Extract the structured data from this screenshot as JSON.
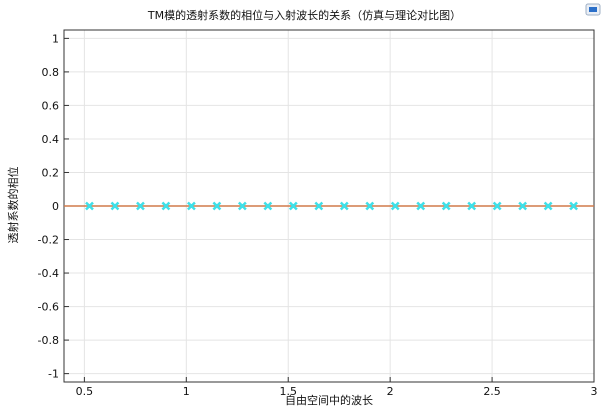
{
  "chart_data": {
    "type": "line",
    "title": "TM模的透射系数的相位与入射波长的关系（仿真与理论对比图）",
    "xlabel": "自由空间中的波长",
    "ylabel": "透射系数的相位",
    "xlim": [
      0.4,
      3.0
    ],
    "ylim": [
      -1.05,
      1.05
    ],
    "xticks": [
      0.5,
      1,
      1.5,
      2,
      2.5,
      3
    ],
    "yticks": [
      1,
      0.8,
      0.6,
      0.4,
      0.2,
      0,
      -0.2,
      -0.4,
      -0.6,
      -0.8,
      -1
    ],
    "xtick_labels": [
      "0.5",
      "1",
      "1.5",
      "2",
      "2.5",
      "3"
    ],
    "ytick_labels": [
      "1",
      "0.8",
      "0.6",
      "0.4",
      "0.2",
      "0",
      "-0.2",
      "-0.4",
      "-0.6",
      "-0.8",
      "-1"
    ],
    "grid": true,
    "series": [
      {
        "style": "line",
        "color": "#d07a4a",
        "x": [
          0.4,
          3.0
        ],
        "y": [
          0,
          0
        ]
      },
      {
        "style": "marker",
        "color": "#3fe0e8",
        "x": [
          0.525,
          0.65,
          0.775,
          0.9,
          1.025,
          1.15,
          1.275,
          1.4,
          1.525,
          1.65,
          1.775,
          1.9,
          2.025,
          2.15,
          2.275,
          2.4,
          2.525,
          2.65,
          2.775,
          2.9
        ],
        "y": [
          0,
          0,
          0,
          0,
          0,
          0,
          0,
          0,
          0,
          0,
          0,
          0,
          0,
          0,
          0,
          0,
          0,
          0,
          0,
          0
        ]
      }
    ]
  },
  "toolbar": {
    "icon": "chart-export-icon",
    "icon_color": "#2a6fc9"
  }
}
